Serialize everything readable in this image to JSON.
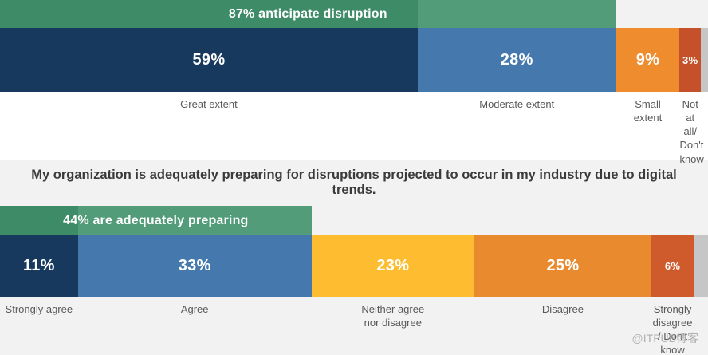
{
  "question": "My organization is adequately preparing for disruptions projected to occur in my industry due to digital trends.",
  "watermark": "@ITPUB博客",
  "annotation_colors": {
    "dark": "#3E8B68",
    "light": "#529C79"
  },
  "background_colors": {
    "page_top": "#FFFFFF",
    "page_bottom": "#F2F2F2",
    "bar_remainder": "#C6C6C6"
  },
  "chart_data": [
    {
      "type": "bar",
      "orientation": "horizontal-stacked",
      "title": "",
      "annotation": {
        "label": "87% anticipate disruption",
        "total_pct": 87,
        "highlight_pct": 59
      },
      "categories": [
        "Great extent",
        "Moderate extent",
        "Small extent",
        "Not at all/ Don't know"
      ],
      "values": [
        59,
        28,
        9,
        3
      ],
      "segments": [
        {
          "label": "Great extent",
          "value_label": "59%",
          "pct": 59,
          "color": "#17395E"
        },
        {
          "label": "Moderate extent",
          "value_label": "28%",
          "pct": 28,
          "color": "#4579AE"
        },
        {
          "label": "Small\nextent",
          "value_label": "9%",
          "pct": 9,
          "color": "#EF8C2D"
        },
        {
          "label": "Not\nat all/\nDon't\nknow",
          "value_label": "3%",
          "pct": 3,
          "color": "#C5512A"
        }
      ],
      "remainder_pct": 1,
      "remainder_color": "#C6C6C6"
    },
    {
      "type": "bar",
      "orientation": "horizontal-stacked",
      "title": "My organization is adequately preparing for disruptions projected to occur in my industry due to digital trends.",
      "annotation": {
        "label": "44% are adequately preparing",
        "total_pct": 44,
        "highlight_pct": 11
      },
      "categories": [
        "Strongly agree",
        "Agree",
        "Neither agree nor disagree",
        "Disagree",
        "Strongly disagree / Don't know"
      ],
      "values": [
        11,
        33,
        23,
        25,
        6
      ],
      "segments": [
        {
          "label": "Strongly agree",
          "value_label": "11%",
          "pct": 11,
          "color": "#17395E"
        },
        {
          "label": "Agree",
          "value_label": "33%",
          "pct": 33,
          "color": "#4579AE"
        },
        {
          "label": "Neither agree\nnor disagree",
          "value_label": "23%",
          "pct": 23,
          "color": "#FEBD30"
        },
        {
          "label": "Disagree",
          "value_label": "25%",
          "pct": 25,
          "color": "#E98A2E"
        },
        {
          "label": "Strongly\ndisagree\n/ Don't\nknow",
          "value_label": "6%",
          "pct": 6,
          "color": "#CF5A2B"
        }
      ],
      "remainder_pct": 2,
      "remainder_color": "#C6C6C6"
    }
  ]
}
